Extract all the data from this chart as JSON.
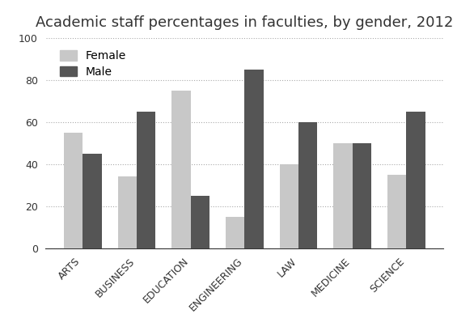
{
  "title": "Academic staff percentages in faculties, by gender, 2012",
  "categories": [
    "ARTS",
    "BUSINESS",
    "EDUCATION",
    "ENGINEERING",
    "LAW",
    "MEDICINE",
    "SCIENCE"
  ],
  "female_values": [
    55,
    34,
    75,
    15,
    40,
    50,
    35
  ],
  "male_values": [
    45,
    65,
    25,
    85,
    60,
    50,
    65
  ],
  "female_color": "#c8c8c8",
  "male_color": "#555555",
  "ylim": [
    0,
    100
  ],
  "yticks": [
    0,
    20,
    40,
    60,
    80,
    100
  ],
  "bar_width": 0.35,
  "legend_female": "Female",
  "legend_male": "Male",
  "background_color": "#ffffff",
  "grid_color": "#aaaaaa",
  "title_fontsize": 13,
  "tick_fontsize": 9,
  "legend_fontsize": 10
}
